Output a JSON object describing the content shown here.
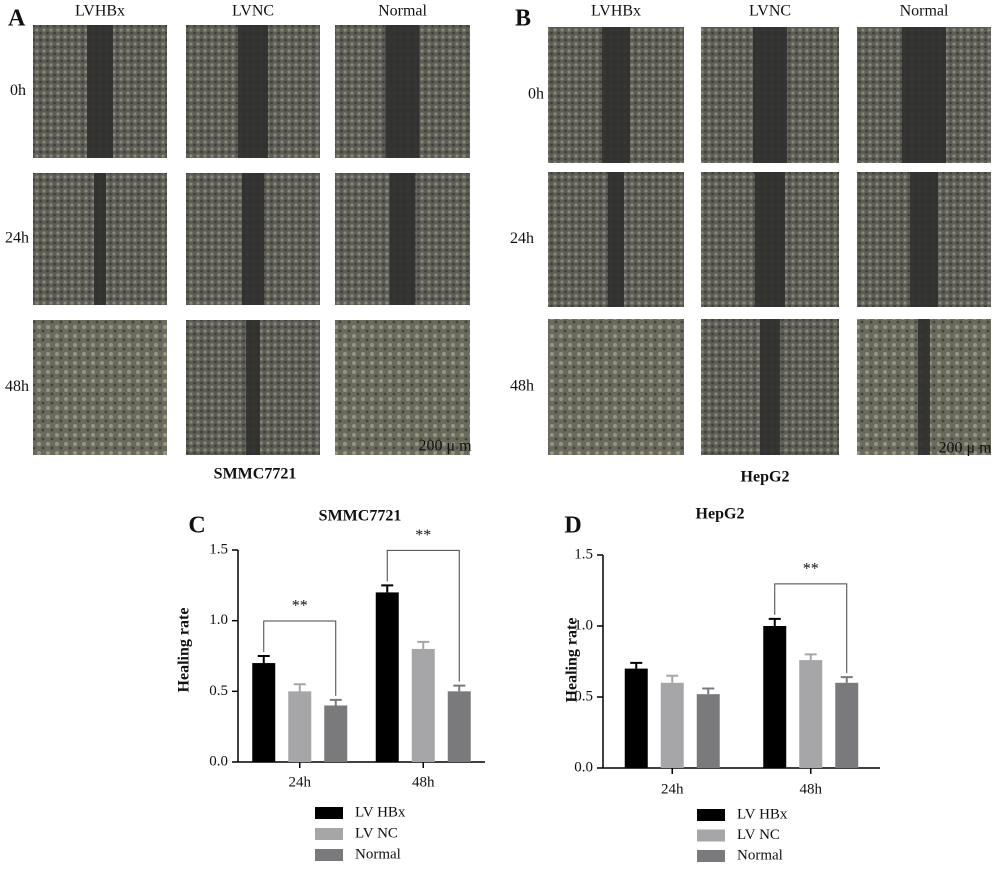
{
  "panels": [
    {
      "letter": "A",
      "columns": [
        "LVHBx",
        "LVNC",
        "Normal"
      ],
      "rows": [
        "0h",
        "24h",
        "48h"
      ],
      "scale": "200 μ m",
      "caption": "SMMC7721"
    },
    {
      "letter": "B",
      "columns": [
        "LVHBx",
        "LVNC",
        "Normal"
      ],
      "rows": [
        "0h",
        "24h",
        "48h"
      ],
      "scale": "200 μ m",
      "caption": "HepG2"
    }
  ],
  "chart_data": [
    {
      "type": "bar",
      "letter": "C",
      "title": "SMMC7721",
      "y_label": "Healing rate",
      "categories": [
        "24h",
        "48h"
      ],
      "series": [
        {
          "name": "LV HBx",
          "color": "#000000",
          "values": [
            0.7,
            1.2
          ],
          "errors": [
            0.05,
            0.05
          ]
        },
        {
          "name": "LV NC",
          "color": "#a6a6a8",
          "values": [
            0.5,
            0.8
          ],
          "errors": [
            0.05,
            0.05
          ]
        },
        {
          "name": "Normal",
          "color": "#7a7a7c",
          "values": [
            0.4,
            0.5
          ],
          "errors": [
            0.04,
            0.04
          ]
        }
      ],
      "ylim": [
        0,
        1.5
      ],
      "yticks": [
        {
          "value": 0,
          "label": "0.0"
        },
        0.5,
        {
          "value": 1,
          "label": "1.0"
        },
        1.5
      ],
      "annotations": [
        {
          "text": "**",
          "category": "24h"
        },
        {
          "text": "**",
          "category": "48h"
        }
      ]
    },
    {
      "type": "bar",
      "letter": "D",
      "title": "HepG2",
      "y_label": "Healing rate",
      "categories": [
        "24h",
        "48h"
      ],
      "series": [
        {
          "name": "LV HBx",
          "color": "#000000",
          "values": [
            0.7,
            1.0
          ],
          "errors": [
            0.04,
            0.05
          ]
        },
        {
          "name": "LV NC",
          "color": "#a6a6a8",
          "values": [
            0.6,
            0.76
          ],
          "errors": [
            0.05,
            0.04
          ]
        },
        {
          "name": "Normal",
          "color": "#7a7a7c",
          "values": [
            0.52,
            0.6
          ],
          "errors": [
            0.04,
            0.04
          ]
        }
      ],
      "ylim": [
        0,
        1.5
      ],
      "yticks": [
        {
          "value": 0,
          "label": "0.0"
        },
        0.5,
        {
          "value": 1,
          "label": "1.0"
        },
        1.5
      ],
      "annotations": [
        {
          "text": "**",
          "category": "48h"
        }
      ]
    }
  ]
}
